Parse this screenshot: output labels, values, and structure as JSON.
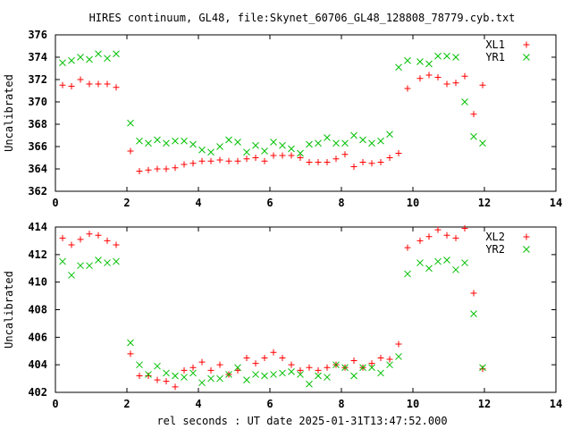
{
  "title": "HIRES continuum, GL48, file:Skynet_60706_GL48_128808_78779.cyb.txt",
  "xlabel": "rel seconds : UT date 2025-01-31T13:47:52.000",
  "chart_data": [
    {
      "type": "scatter",
      "ylabel": "Uncalibrated",
      "xlim": [
        0,
        14
      ],
      "ylim": [
        362,
        376
      ],
      "xticks": [
        0,
        2,
        4,
        6,
        8,
        10,
        12,
        14
      ],
      "yticks": [
        362,
        364,
        366,
        368,
        370,
        372,
        374,
        376
      ],
      "legend_position": "top-right",
      "series": [
        {
          "name": "XL1",
          "marker": "plus",
          "color": "#ff0000",
          "x": [
            0.2,
            0.45,
            0.7,
            0.95,
            1.2,
            1.45,
            1.7,
            2.1,
            2.35,
            2.6,
            2.85,
            3.1,
            3.35,
            3.6,
            3.85,
            4.1,
            4.35,
            4.6,
            4.85,
            5.1,
            5.35,
            5.6,
            5.85,
            6.1,
            6.35,
            6.6,
            6.85,
            7.1,
            7.35,
            7.6,
            7.85,
            8.1,
            8.35,
            8.6,
            8.85,
            9.1,
            9.35,
            9.6,
            9.85,
            10.2,
            10.45,
            10.7,
            10.95,
            11.2,
            11.45,
            11.7,
            11.95
          ],
          "y": [
            371.5,
            371.4,
            372.0,
            371.6,
            371.6,
            371.6,
            371.3,
            365.6,
            363.8,
            363.9,
            364.0,
            364.0,
            364.1,
            364.4,
            364.5,
            364.7,
            364.7,
            364.8,
            364.7,
            364.7,
            364.9,
            365.0,
            364.7,
            365.2,
            365.2,
            365.2,
            365.0,
            364.6,
            364.6,
            364.6,
            364.9,
            365.3,
            364.2,
            364.6,
            364.5,
            364.6,
            365.0,
            365.4,
            371.2,
            372.1,
            372.4,
            372.2,
            371.6,
            371.7,
            372.3,
            368.9,
            371.5
          ]
        },
        {
          "name": "YR1",
          "marker": "cross",
          "color": "#00c000",
          "x": [
            0.2,
            0.45,
            0.7,
            0.95,
            1.2,
            1.45,
            1.7,
            2.1,
            2.35,
            2.6,
            2.85,
            3.1,
            3.35,
            3.6,
            3.85,
            4.1,
            4.35,
            4.6,
            4.85,
            5.1,
            5.35,
            5.6,
            5.85,
            6.1,
            6.35,
            6.6,
            6.85,
            7.1,
            7.35,
            7.6,
            7.85,
            8.1,
            8.35,
            8.6,
            8.85,
            9.1,
            9.35,
            9.6,
            9.85,
            10.2,
            10.45,
            10.7,
            10.95,
            11.2,
            11.45,
            11.7,
            11.95
          ],
          "y": [
            373.5,
            373.7,
            374.0,
            373.8,
            374.3,
            373.9,
            374.3,
            368.1,
            366.5,
            366.3,
            366.6,
            366.3,
            366.5,
            366.5,
            366.2,
            365.7,
            365.5,
            366.0,
            366.6,
            366.4,
            365.5,
            366.1,
            365.6,
            366.4,
            366.1,
            365.8,
            365.4,
            366.2,
            366.3,
            366.8,
            366.3,
            366.3,
            367.0,
            366.6,
            366.3,
            366.5,
            367.1,
            373.1,
            373.7,
            373.6,
            373.4,
            374.1,
            374.1,
            374.0,
            370.0,
            366.9,
            366.3
          ]
        }
      ]
    },
    {
      "type": "scatter",
      "ylabel": "Uncalibrated",
      "xlim": [
        0,
        14
      ],
      "ylim": [
        402,
        414
      ],
      "xticks": [
        0,
        2,
        4,
        6,
        8,
        10,
        12,
        14
      ],
      "yticks": [
        402,
        404,
        406,
        408,
        410,
        412,
        414
      ],
      "legend_position": "top-right",
      "series": [
        {
          "name": "XL2",
          "marker": "plus",
          "color": "#ff0000",
          "x": [
            0.2,
            0.45,
            0.7,
            0.95,
            1.2,
            1.45,
            1.7,
            2.1,
            2.35,
            2.6,
            2.85,
            3.1,
            3.35,
            3.6,
            3.85,
            4.1,
            4.35,
            4.6,
            4.85,
            5.1,
            5.35,
            5.6,
            5.85,
            6.1,
            6.35,
            6.6,
            6.85,
            7.1,
            7.35,
            7.6,
            7.85,
            8.1,
            8.35,
            8.6,
            8.85,
            9.1,
            9.35,
            9.6,
            9.85,
            10.2,
            10.45,
            10.7,
            10.95,
            11.2,
            11.45,
            11.7,
            11.95
          ],
          "y": [
            413.2,
            412.7,
            413.1,
            413.5,
            413.4,
            413.0,
            412.7,
            404.8,
            403.2,
            403.2,
            402.9,
            402.8,
            402.4,
            403.6,
            403.8,
            404.2,
            403.6,
            404.0,
            403.3,
            403.6,
            404.5,
            404.1,
            404.5,
            404.9,
            404.5,
            404.0,
            403.6,
            403.8,
            403.6,
            403.8,
            404.0,
            403.8,
            404.3,
            403.8,
            404.1,
            404.5,
            404.4,
            405.5,
            412.5,
            413.0,
            413.3,
            413.8,
            413.4,
            413.2,
            413.9,
            409.2,
            403.7
          ]
        },
        {
          "name": "YR2",
          "marker": "cross",
          "color": "#00c000",
          "x": [
            0.2,
            0.45,
            0.7,
            0.95,
            1.2,
            1.45,
            1.7,
            2.1,
            2.35,
            2.6,
            2.85,
            3.1,
            3.35,
            3.6,
            3.85,
            4.1,
            4.35,
            4.6,
            4.85,
            5.1,
            5.35,
            5.6,
            5.85,
            6.1,
            6.35,
            6.6,
            6.85,
            7.1,
            7.35,
            7.6,
            7.85,
            8.1,
            8.35,
            8.6,
            8.85,
            9.1,
            9.35,
            9.6,
            9.85,
            10.2,
            10.45,
            10.7,
            10.95,
            11.2,
            11.45,
            11.7,
            11.95
          ],
          "y": [
            411.5,
            410.5,
            411.2,
            411.2,
            411.6,
            411.4,
            411.5,
            405.6,
            404.0,
            403.3,
            403.9,
            403.4,
            403.2,
            403.1,
            403.4,
            402.7,
            403.0,
            403.0,
            403.3,
            403.8,
            402.9,
            403.3,
            403.2,
            403.3,
            403.4,
            403.5,
            403.3,
            402.6,
            403.2,
            403.1,
            404.0,
            403.8,
            403.2,
            403.8,
            403.8,
            403.4,
            404.0,
            404.6,
            410.6,
            411.4,
            411.0,
            411.5,
            411.6,
            410.9,
            411.4,
            407.7,
            403.8
          ]
        }
      ]
    }
  ]
}
